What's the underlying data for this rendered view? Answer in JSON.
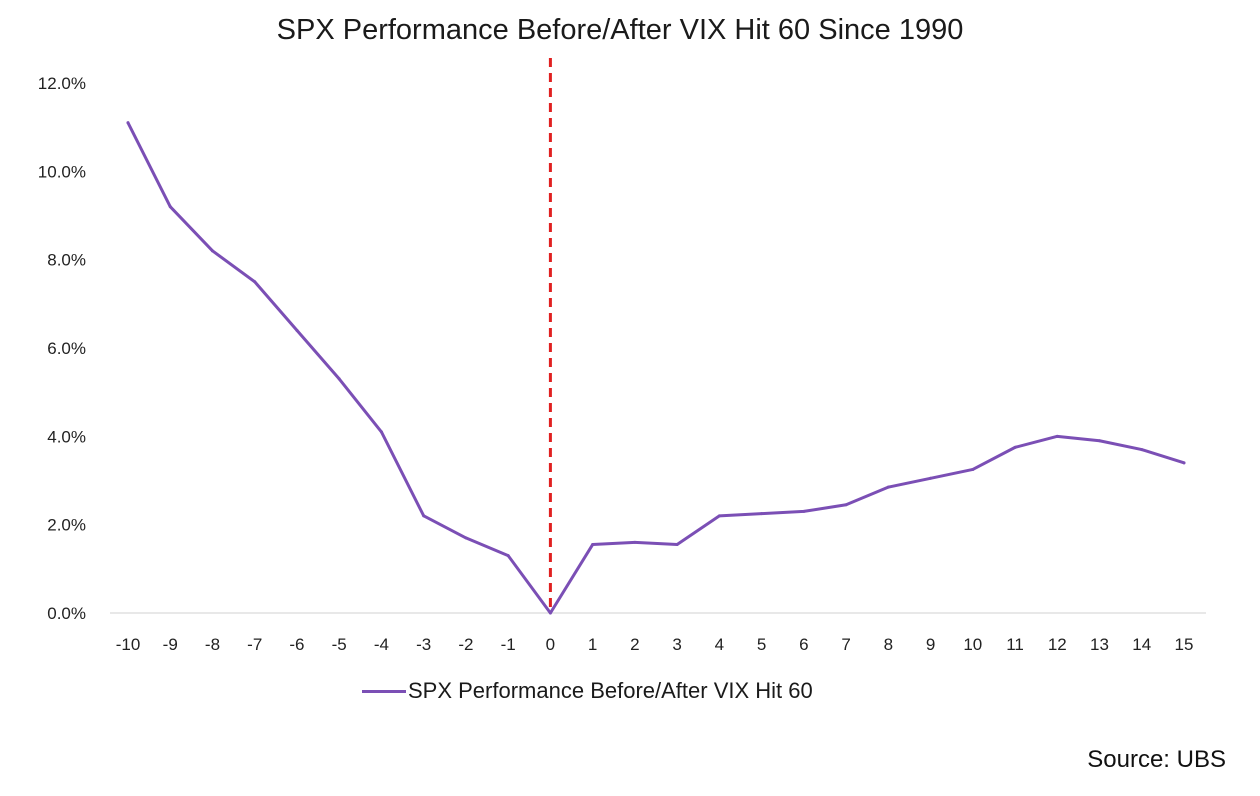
{
  "chart_data": {
    "type": "line",
    "title": "SPX Performance Before/After VIX Hit 60 Since 1990",
    "xlabel": "",
    "ylabel": "",
    "x": [
      -10,
      -9,
      -8,
      -7,
      -6,
      -5,
      -4,
      -3,
      -2,
      -1,
      0,
      1,
      2,
      3,
      4,
      5,
      6,
      7,
      8,
      9,
      10,
      11,
      12,
      13,
      14,
      15
    ],
    "x_tick_labels": [
      "-10",
      "-9",
      "-8",
      "-7",
      "-6",
      "-5",
      "-4",
      "-3",
      "-2",
      "-1",
      "0",
      "1",
      "2",
      "3",
      "4",
      "5",
      "6",
      "7",
      "8",
      "9",
      "10",
      "11",
      "12",
      "13",
      "14",
      "15"
    ],
    "series": [
      {
        "name": "SPX Performance Before/After VIX Hit 60",
        "color": "#7b4fb5",
        "values": [
          11.1,
          9.2,
          8.2,
          7.5,
          6.4,
          5.3,
          4.1,
          2.2,
          1.7,
          1.3,
          0.0,
          1.55,
          1.6,
          1.55,
          2.2,
          2.25,
          2.3,
          2.45,
          2.85,
          3.05,
          3.25,
          3.75,
          4.0,
          3.9,
          3.7,
          3.4
        ]
      }
    ],
    "ylim": [
      0,
      12
    ],
    "y_ticks": [
      0,
      2,
      4,
      6,
      8,
      10,
      12
    ],
    "y_tick_labels": [
      "0.0%",
      "2.0%",
      "4.0%",
      "6.0%",
      "8.0%",
      "10.0%",
      "12.0%"
    ],
    "reference_line": {
      "x": 0,
      "color": "#e02020",
      "style": "dashed"
    },
    "grid": false,
    "legend_position": "bottom-center"
  },
  "footer": {
    "source": "Source: UBS"
  }
}
